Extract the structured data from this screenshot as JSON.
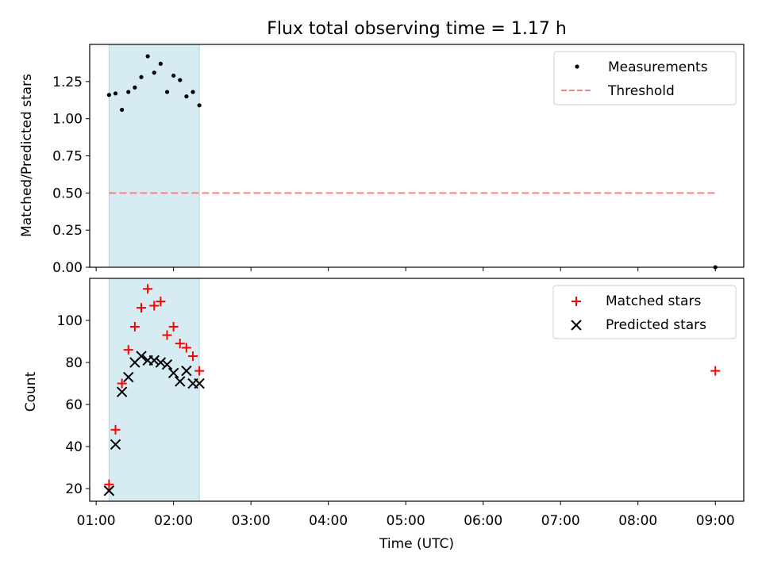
{
  "chart_data": [
    {
      "type": "scatter",
      "title": "Flux total observing time = 1.17 h",
      "xlabel": "",
      "ylabel": "Matched/Predicted stars",
      "xlim": [
        "00:55",
        "09:22"
      ],
      "ylim": [
        0,
        1.5
      ],
      "yticks": [
        0.0,
        0.25,
        0.5,
        0.75,
        1.0,
        1.25
      ],
      "ytick_labels": [
        "0.00",
        "0.25",
        "0.50",
        "0.75",
        "1.00",
        "1.25"
      ],
      "legend_position": "top-right",
      "shaded_interval": {
        "start": "01:10",
        "end": "02:20",
        "color": "#add8e6"
      },
      "series": [
        {
          "name": "Measurements",
          "kind": "dot",
          "color": "#000000",
          "x": [
            "01:10",
            "01:15",
            "01:20",
            "01:25",
            "01:30",
            "01:35",
            "01:40",
            "01:45",
            "01:50",
            "01:55",
            "02:00",
            "02:05",
            "02:10",
            "02:15",
            "02:20",
            "09:00"
          ],
          "y": [
            1.16,
            1.17,
            1.06,
            1.18,
            1.21,
            1.28,
            1.42,
            1.31,
            1.37,
            1.18,
            1.29,
            1.26,
            1.15,
            1.18,
            1.09,
            0.0
          ]
        },
        {
          "name": "Threshold",
          "kind": "dashed-line",
          "color": "#ff7f7f",
          "x": [
            "01:10",
            "09:00"
          ],
          "y": [
            0.5,
            0.5
          ]
        }
      ]
    },
    {
      "type": "scatter",
      "title": "",
      "xlabel": "Time (UTC)",
      "ylabel": "Count",
      "xlim": [
        "00:55",
        "09:22"
      ],
      "ylim": [
        14,
        120
      ],
      "yticks": [
        20,
        40,
        60,
        80,
        100
      ],
      "ytick_labels": [
        "20",
        "40",
        "60",
        "80",
        "100"
      ],
      "xticks": [
        "01:00",
        "02:00",
        "03:00",
        "04:00",
        "05:00",
        "06:00",
        "07:00",
        "08:00",
        "09:00"
      ],
      "legend_position": "top-right",
      "shaded_interval": {
        "start": "01:10",
        "end": "02:20",
        "color": "#add8e6"
      },
      "series": [
        {
          "name": "Matched stars",
          "kind": "plus",
          "color": "#ff0000",
          "x": [
            "01:10",
            "01:15",
            "01:20",
            "01:25",
            "01:30",
            "01:35",
            "01:40",
            "01:45",
            "01:50",
            "01:55",
            "02:00",
            "02:05",
            "02:10",
            "02:15",
            "02:20",
            "09:00"
          ],
          "y": [
            22,
            48,
            70,
            86,
            97,
            106,
            115,
            107,
            109,
            93,
            97,
            89,
            87,
            83,
            76,
            76
          ]
        },
        {
          "name": "Predicted stars",
          "kind": "x",
          "color": "#000000",
          "x": [
            "01:10",
            "01:15",
            "01:20",
            "01:25",
            "01:30",
            "01:35",
            "01:40",
            "01:45",
            "01:50",
            "01:55",
            "02:00",
            "02:05",
            "02:10",
            "02:15",
            "02:20"
          ],
          "y": [
            19,
            41,
            66,
            73,
            80,
            83,
            81,
            81,
            80,
            79,
            75,
            71,
            76,
            70,
            70
          ]
        }
      ]
    }
  ]
}
